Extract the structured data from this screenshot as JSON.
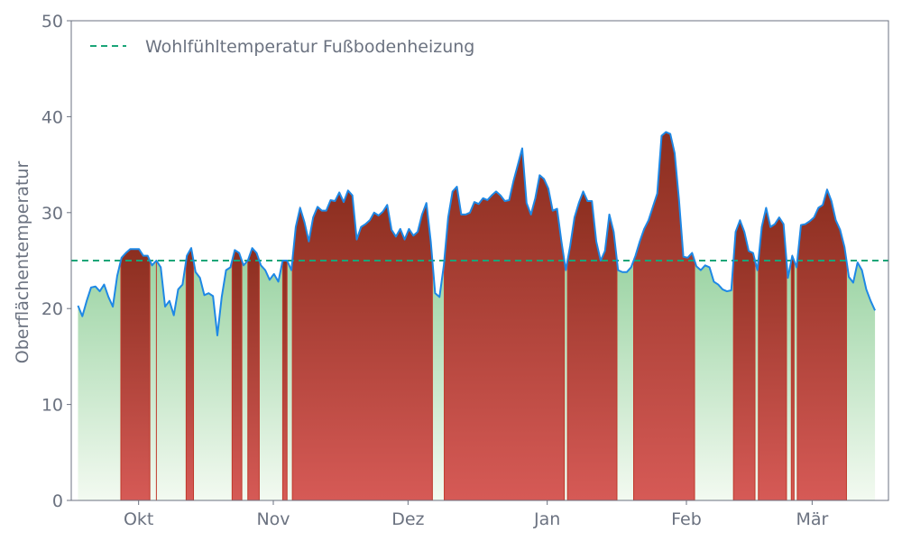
{
  "chart_data": {
    "type": "area",
    "title": "",
    "xlabel": "",
    "ylabel": "Oberflächentemperatur",
    "ylim": [
      0,
      50
    ],
    "yticks": [
      0,
      10,
      20,
      30,
      40,
      50
    ],
    "x_ticks": [
      {
        "label": "Okt",
        "day": 15
      },
      {
        "label": "Nov",
        "day": 45
      },
      {
        "label": "Dez",
        "day": 75
      },
      {
        "label": "Jan",
        "day": 106
      },
      {
        "label": "Feb",
        "day": 137
      },
      {
        "label": "Mär",
        "day": 165
      }
    ],
    "xlim": [
      0,
      182
    ],
    "grid": false,
    "legend": {
      "position": "top-left",
      "entries": [
        "Wohlfühltemperatur Fußbodenheizung"
      ]
    },
    "threshold": {
      "name": "Wohlfühltemperatur Fußbodenheizung",
      "value": 25
    },
    "series": [
      {
        "name": "",
        "values": [
          20.3,
          19.2,
          20.8,
          22.2,
          22.3,
          21.8,
          22.5,
          21.2,
          20.2,
          23.4,
          25.3,
          25.8,
          26.2,
          26.2,
          26.2,
          25.5,
          25.5,
          24.5,
          25.0,
          24.3,
          20.2,
          20.8,
          19.3,
          22.0,
          22.5,
          25.5,
          26.3,
          23.8,
          23.2,
          21.4,
          21.6,
          21.3,
          17.2,
          21.2,
          24.0,
          24.3,
          26.1,
          25.8,
          24.5,
          25.0,
          26.3,
          25.8,
          24.5,
          24.0,
          23.0,
          23.6,
          22.8,
          25.0,
          25.0,
          24.0,
          28.5,
          30.5,
          29.0,
          27.0,
          29.5,
          30.6,
          30.2,
          30.2,
          31.3,
          31.2,
          32.1,
          31.1,
          32.3,
          31.8,
          27.2,
          28.5,
          28.8,
          29.2,
          30.0,
          29.7,
          30.1,
          30.8,
          28.2,
          27.5,
          28.3,
          27.2,
          28.3,
          27.6,
          28.0,
          29.8,
          31.0,
          27.0,
          21.6,
          21.2,
          24.5,
          29.5,
          32.2,
          32.7,
          29.8,
          29.8,
          30.0,
          31.1,
          30.9,
          31.5,
          31.3,
          31.8,
          32.2,
          31.8,
          31.2,
          31.3,
          33.3,
          35.0,
          36.7,
          31.0,
          29.8,
          31.5,
          33.9,
          33.5,
          32.5,
          30.2,
          30.4,
          27.0,
          24.0,
          26.5,
          29.5,
          31.0,
          32.2,
          31.2,
          31.2,
          27.0,
          25.0,
          26.0,
          29.8,
          28.0,
          24.0,
          23.8,
          23.8,
          24.3,
          25.5,
          27.0,
          28.3,
          29.2,
          30.6,
          32.0,
          38.0,
          38.4,
          38.2,
          36.2,
          31.3,
          25.4,
          25.3,
          25.8,
          24.4,
          24.0,
          24.5,
          24.3,
          22.8,
          22.5,
          22.0,
          21.8,
          21.9,
          28.0,
          29.2,
          28.0,
          26.0,
          25.8,
          24.0,
          28.5,
          30.5,
          28.5,
          28.8,
          29.5,
          28.8,
          23.2,
          25.5,
          24.3,
          28.7,
          28.8,
          29.1,
          29.5,
          30.5,
          30.8,
          32.4,
          31.2,
          29.2,
          28.2,
          26.4,
          23.3,
          22.7,
          24.8,
          24.0,
          22.0,
          20.8,
          19.8
        ]
      }
    ],
    "colors": {
      "line": "#1e88e5",
      "threshold": "#1aa578",
      "above_fill_top": "#8b2e1f",
      "above_fill_bottom": "#d65a56",
      "below_fill_top": "#6cbf7a",
      "below_fill_bottom": "#f3faf1",
      "axis": "#6b7280"
    }
  }
}
